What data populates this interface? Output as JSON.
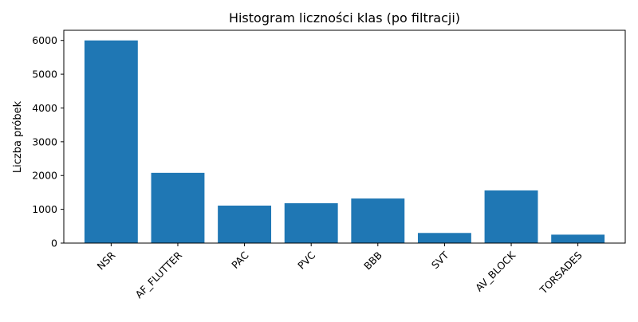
{
  "chart_data": {
    "type": "bar",
    "title": "Histogram liczności klas (po filtracji)",
    "xlabel": "",
    "ylabel": "Liczba próbek",
    "categories": [
      "NSR",
      "AF_FLUTTER",
      "PAC",
      "PVC",
      "BBB",
      "SVT",
      "AV_BLOCK",
      "TORSADES"
    ],
    "values": [
      6000,
      2080,
      1110,
      1180,
      1320,
      300,
      1560,
      250
    ],
    "ylim": [
      0,
      6300
    ],
    "yticks": [
      0,
      1000,
      2000,
      3000,
      4000,
      5000,
      6000
    ],
    "bar_color": "#1f77b4",
    "grid": false,
    "legend": "none"
  }
}
